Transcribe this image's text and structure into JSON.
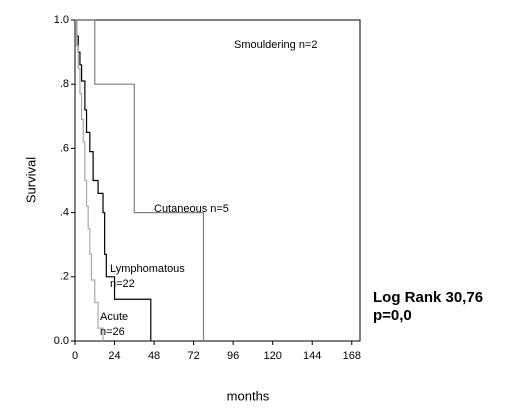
{
  "chart_data": {
    "type": "line",
    "x_label": "months",
    "y_label": "Survival",
    "xlim": [
      0,
      173
    ],
    "ylim": [
      0,
      1
    ],
    "xticks": [
      0,
      24,
      48,
      72,
      96,
      120,
      144,
      168
    ],
    "yticks": [
      {
        "value": 0,
        "label": "0.0"
      },
      {
        "value": 0.2,
        "label": ".2"
      },
      {
        "value": 0.4,
        "label": ".4"
      },
      {
        "value": 0.6,
        "label": ".6"
      },
      {
        "value": 0.8,
        "label": ".8"
      },
      {
        "value": 1,
        "label": "1.0"
      }
    ],
    "series": [
      {
        "color": "#000000",
        "x": [
          0,
          12
        ],
        "values": [
          1,
          1
        ]
      },
      {
        "color": "#808080",
        "x": [
          0,
          12,
          12,
          36,
          36,
          78,
          78
        ],
        "values": [
          1,
          1,
          0.8,
          0.8,
          0.4,
          0.4,
          0
        ]
      },
      {
        "color": "#000000",
        "x": [
          0,
          1,
          1,
          2,
          2,
          3,
          3,
          4,
          4,
          6,
          6,
          7,
          7,
          9,
          9,
          11,
          11,
          14,
          14,
          17,
          17,
          18,
          18,
          19,
          19,
          24,
          24,
          46,
          46
        ],
        "values": [
          1,
          1,
          0.95,
          0.95,
          0.9,
          0.9,
          0.86,
          0.86,
          0.81,
          0.81,
          0.72,
          0.72,
          0.65,
          0.65,
          0.59,
          0.59,
          0.5,
          0.5,
          0.46,
          0.46,
          0.4,
          0.4,
          0.27,
          0.27,
          0.2,
          0.2,
          0.13,
          0.13,
          0
        ]
      },
      {
        "color": "#a8a8a8",
        "x": [
          0,
          1,
          1,
          2,
          2,
          3,
          3,
          4,
          4,
          5,
          5,
          6,
          6,
          7,
          7,
          8,
          8,
          9,
          9,
          10,
          10,
          12,
          12,
          14,
          14,
          17,
          17
        ],
        "values": [
          1,
          1,
          0.92,
          0.92,
          0.85,
          0.85,
          0.77,
          0.77,
          0.69,
          0.69,
          0.62,
          0.62,
          0.5,
          0.5,
          0.42,
          0.42,
          0.35,
          0.35,
          0.27,
          0.27,
          0.19,
          0.19,
          0.12,
          0.12,
          0.04,
          0.04,
          0
        ]
      }
    ],
    "annotations": [
      {
        "lines": [
          "Smouldering n=2"
        ]
      },
      {
        "lines": [
          "Cutaneous n=5"
        ]
      },
      {
        "lines": [
          "Lymphomatous",
          "n=22"
        ]
      },
      {
        "lines": [
          "Acute",
          "n=26"
        ]
      }
    ],
    "stat_lines": [
      "Log Rank 30,76",
      "p=0,0"
    ]
  }
}
